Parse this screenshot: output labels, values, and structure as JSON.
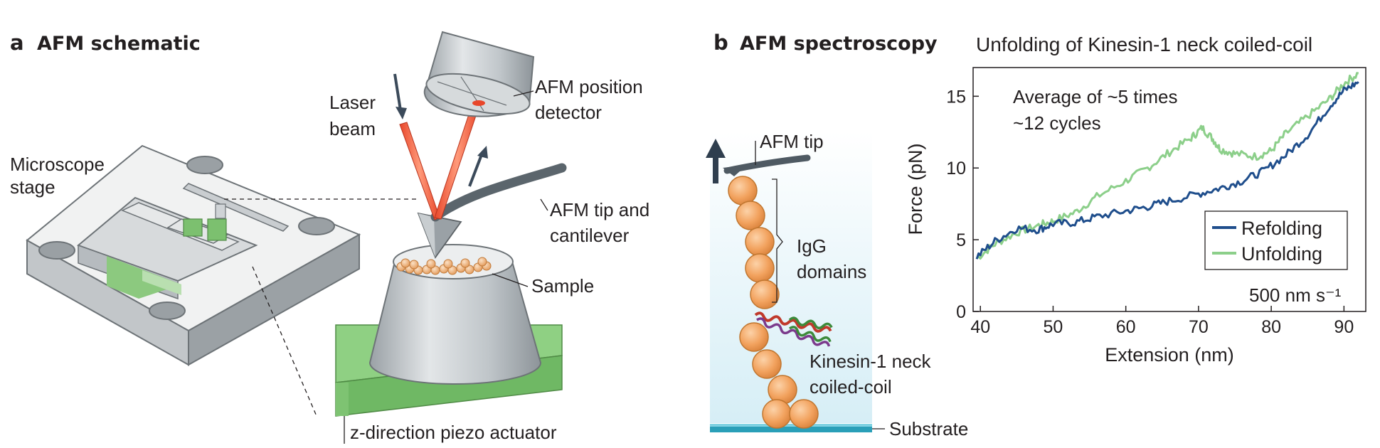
{
  "panel_a": {
    "letter": "a",
    "title": "AFM schematic",
    "labels": {
      "laser_beam_1": "Laser",
      "laser_beam_2": "beam",
      "detector_1": "AFM position",
      "detector_2": "detector",
      "stage_1": "Microscope",
      "stage_2": "stage",
      "tip_1": "AFM tip and",
      "tip_2": "cantilever",
      "sample": "Sample",
      "piezo": "z-direction piezo actuator"
    }
  },
  "panel_b": {
    "letter": "b",
    "title": "AFM spectroscopy",
    "labels": {
      "afm_tip": "AFM tip",
      "igg_1": "IgG",
      "igg_2": "domains",
      "kinesin_1": "Kinesin-1 neck",
      "kinesin_2": "coiled-coil",
      "substrate": "Substrate"
    }
  },
  "chart_data": {
    "type": "line",
    "title": "Unfolding of Kinesin-1 neck coiled-coil",
    "xlabel": "Extension (nm)",
    "ylabel": "Force (pN)",
    "xlim": [
      39,
      93
    ],
    "ylim": [
      0,
      17
    ],
    "xticks": [
      "40",
      "50",
      "60",
      "70",
      "80",
      "90"
    ],
    "yticks": [
      "0",
      "5",
      "10",
      "15"
    ],
    "annotation_1": "Average of ~5 times",
    "annotation_2": "~12 cycles",
    "rate_label": "500 nm s⁻¹",
    "legend_position": "right",
    "series": [
      {
        "name": "Refolding",
        "color": "#1f4e8c",
        "x": [
          39.5,
          42,
          45,
          48,
          50,
          53,
          56,
          60,
          63,
          66,
          70,
          73,
          76,
          79,
          82,
          85,
          88,
          90,
          92
        ],
        "y": [
          3.8,
          4.9,
          5.8,
          5.7,
          6.1,
          6.2,
          6.6,
          7.0,
          7.3,
          7.7,
          8.2,
          8.6,
          9.1,
          9.8,
          10.9,
          12.3,
          14.3,
          15.4,
          16.0
        ]
      },
      {
        "name": "Unfolding",
        "color": "#8ccf8a",
        "x": [
          39.5,
          42,
          45,
          48,
          50,
          53,
          56,
          60,
          63,
          66,
          69,
          70.5,
          72,
          73,
          75,
          78,
          80,
          82,
          85,
          88,
          90,
          92
        ],
        "y": [
          3.7,
          4.7,
          5.5,
          6.0,
          6.3,
          6.9,
          8.0,
          9.1,
          10.0,
          11.1,
          12.1,
          12.8,
          12.0,
          11.3,
          11.0,
          10.8,
          11.2,
          12.4,
          13.6,
          14.8,
          15.9,
          16.6
        ]
      }
    ]
  }
}
